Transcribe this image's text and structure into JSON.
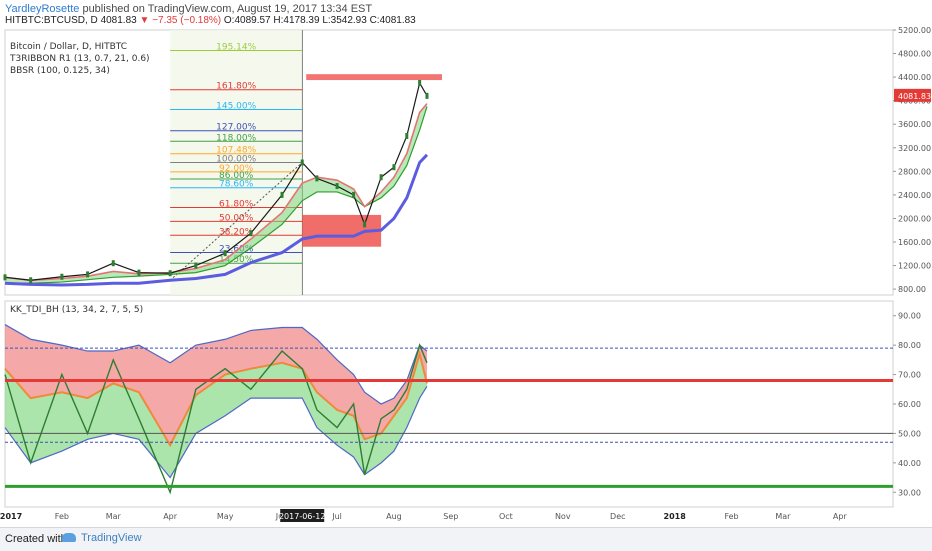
{
  "header": {
    "author": "YardleyRosette",
    "published_text": " published on TradingView.com, August 19, 2017 13:34 EST",
    "symbol": "HITBTC:BTCUSD, D",
    "price": "4081.83",
    "change": "−7.35 (−0.18%)",
    "ohlc": "O:4089.57 H:4178.39 L:3542.93 C:4081.83"
  },
  "legend": {
    "line1": "Bitcoin / Dollar, D, HITBTC",
    "line2": "T3RIBBON R1 (13, 0.7, 21, 0.6)",
    "line3": "BBSR (100, 0.125, 34)",
    "oscillator": "KK_TDI_BH (13, 34, 2, 7, 5, 5)"
  },
  "price_axis": {
    "ticks": [
      "5200.00",
      "4800.00",
      "4400.00",
      "4000.00",
      "3600.00",
      "3200.00",
      "2800.00",
      "2400.00",
      "2000.00",
      "1600.00",
      "1200.00",
      "800.00"
    ],
    "last_price": "4081.83",
    "last_price_color": "#e53935"
  },
  "osc_axis": {
    "ticks": [
      "90.00",
      "80.00",
      "70.00",
      "60.00",
      "50.00",
      "40.00",
      "30.00"
    ]
  },
  "time_axis": {
    "labels": [
      "2017",
      "Feb",
      "Mar",
      "Apr",
      "May",
      "Jun",
      "Jul",
      "Aug",
      "Sep",
      "Oct",
      "Nov",
      "Dec",
      "2018",
      "Feb",
      "Mar",
      "Apr"
    ],
    "highlight": "2017-06-12"
  },
  "fib_levels": [
    {
      "label": "195.14%",
      "color": "#9ccc3c"
    },
    {
      "label": "161.80%",
      "color": "#e53935"
    },
    {
      "label": "145.00%",
      "color": "#29b6f6"
    },
    {
      "label": "127.00%",
      "color": "#3f51b5"
    },
    {
      "label": "118.00%",
      "color": "#43a047"
    },
    {
      "label": "107.48%",
      "color": "#ffa726"
    },
    {
      "label": "100.00%",
      "color": "#808080"
    },
    {
      "label": "92.00%",
      "color": "#ffa726"
    },
    {
      "label": "86.00%",
      "color": "#43a047"
    },
    {
      "label": "78.60%",
      "color": "#29b6f6"
    },
    {
      "label": "61.80%",
      "color": "#e53935"
    },
    {
      "label": "50.00%",
      "color": "#e53935"
    },
    {
      "label": "38.20%",
      "color": "#e53935"
    },
    {
      "label": "23.60%",
      "color": "#3f51b5"
    },
    {
      "label": "14.50%",
      "color": "#43a047"
    }
  ],
  "chart_data": {
    "type": "line",
    "title": "Bitcoin / Dollar, D, HITBTC",
    "x": [
      "2017-01-01",
      "2017-01-15",
      "2017-02-01",
      "2017-02-15",
      "2017-03-01",
      "2017-03-15",
      "2017-04-01",
      "2017-04-15",
      "2017-05-01",
      "2017-05-15",
      "2017-06-01",
      "2017-06-12",
      "2017-06-20",
      "2017-07-01",
      "2017-07-10",
      "2017-07-16",
      "2017-07-25",
      "2017-08-01",
      "2017-08-08",
      "2017-08-15",
      "2017-08-19"
    ],
    "series": [
      {
        "values": [
          1000,
          950,
          1010,
          1050,
          1240,
          1080,
          1070,
          1200,
          1410,
          1750,
          2400,
          2950,
          2680,
          2550,
          2400,
          1900,
          2700,
          2870,
          3400,
          4300,
          4081.83
        ]
      },
      {
        "values": [
          900,
          900,
          920,
          960,
          1000,
          1020,
          1050,
          1080,
          1200,
          1500,
          1900,
          2300,
          2450,
          2450,
          2350,
          2200,
          2350,
          2550,
          2900,
          3500,
          3900
        ]
      },
      {
        "values": [
          1000,
          950,
          980,
          1020,
          1100,
          1060,
          1080,
          1150,
          1300,
          1650,
          2100,
          2600,
          2700,
          2650,
          2500,
          2200,
          2450,
          2700,
          3100,
          3800,
          3950
        ]
      },
      {
        "values": [
          900,
          880,
          870,
          880,
          900,
          900,
          950,
          980,
          1050,
          1250,
          1420,
          1650,
          1700,
          1700,
          1700,
          1780,
          1800,
          2000,
          2350,
          2950,
          3080
        ]
      },
      {
        "values": [
          70,
          40,
          70,
          50,
          75,
          55,
          30,
          65,
          72,
          65,
          78,
          72,
          58,
          52,
          60,
          36,
          55,
          58,
          65,
          80,
          74
        ]
      },
      {
        "values": [
          72,
          62,
          64,
          62,
          67,
          64,
          46,
          63,
          70,
          72,
          74,
          72,
          64,
          58,
          56,
          48,
          50,
          56,
          62,
          77,
          67
        ]
      },
      {
        "values": [
          87,
          82,
          80,
          78,
          78,
          80,
          74,
          80,
          82,
          85,
          86,
          86,
          82,
          75,
          70,
          64,
          60,
          62,
          68,
          80,
          78
        ]
      },
      {
        "values": [
          52,
          40,
          44,
          48,
          50,
          48,
          35,
          50,
          56,
          62,
          62,
          62,
          52,
          46,
          42,
          36,
          40,
          44,
          52,
          62,
          66
        ]
      }
    ],
    "annotations": [
      {
        "type": "fibonacci_retracement",
        "levels": [
          "195.14%",
          "161.80%",
          "145.00%",
          "127.00%",
          "118.00%",
          "107.48%",
          "100.00%",
          "92.00%",
          "86.00%",
          "78.60%",
          "61.80%",
          "50.00%",
          "38.20%",
          "23.60%",
          "14.50%"
        ]
      },
      {
        "type": "zone",
        "y": [
          4350,
          4450
        ],
        "x": [
          "2017-06-12",
          "2017-08-25"
        ]
      },
      {
        "type": "zone",
        "y": [
          1520,
          2060
        ],
        "x": [
          "2017-06-12",
          "2017-07-25"
        ]
      }
    ],
    "oscillator": {
      "name": "KK_TDI_BH (13, 34, 2, 7, 5, 5)",
      "levels": [
        {
          "y": 68,
          "color": "#e53935"
        },
        {
          "y": 32,
          "color": "#2e9e2e"
        },
        {
          "y": 50,
          "color": "#555555"
        },
        {
          "y": 79,
          "color": "#3f51b5"
        },
        {
          "y": 47,
          "color": "#3f51b5"
        }
      ]
    },
    "ylim": [
      700,
      5200
    ],
    "osc_ylim": [
      25,
      95
    ],
    "grid": true
  }
}
